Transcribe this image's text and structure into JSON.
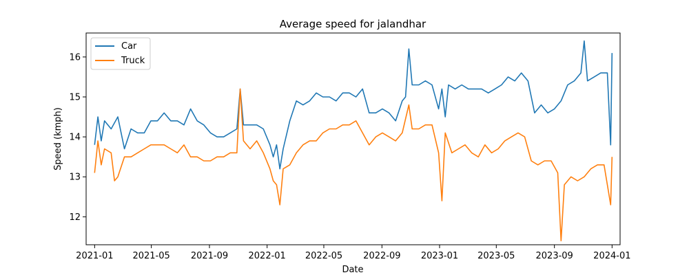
{
  "chart_data": {
    "type": "line",
    "title": "Average speed for jalandhar",
    "xlabel": "Date",
    "ylabel": "Speed (kmph)",
    "xlim": [
      "2020-12-14",
      "2024-01-18"
    ],
    "ylim": [
      11.3,
      16.6
    ],
    "x_ticks": [
      "2021-01",
      "2021-05",
      "2021-09",
      "2022-01",
      "2022-05",
      "2022-09",
      "2023-01",
      "2023-05",
      "2023-09",
      "2024-01"
    ],
    "y_ticks": [
      12,
      13,
      14,
      15,
      16
    ],
    "grid": false,
    "legend_position": "top-left",
    "series": [
      {
        "name": "Car",
        "color": "#1f77b4",
        "points": [
          [
            "2021-01-01",
            13.8
          ],
          [
            "2021-01-08",
            14.5
          ],
          [
            "2021-01-15",
            13.9
          ],
          [
            "2021-01-22",
            14.4
          ],
          [
            "2021-02-05",
            14.2
          ],
          [
            "2021-02-19",
            14.5
          ],
          [
            "2021-03-05",
            13.7
          ],
          [
            "2021-03-19",
            14.2
          ],
          [
            "2021-04-02",
            14.1
          ],
          [
            "2021-04-16",
            14.1
          ],
          [
            "2021-04-30",
            14.4
          ],
          [
            "2021-05-14",
            14.4
          ],
          [
            "2021-05-28",
            14.6
          ],
          [
            "2021-06-11",
            14.4
          ],
          [
            "2021-06-25",
            14.4
          ],
          [
            "2021-07-09",
            14.3
          ],
          [
            "2021-07-23",
            14.7
          ],
          [
            "2021-08-06",
            14.4
          ],
          [
            "2021-08-20",
            14.3
          ],
          [
            "2021-09-03",
            14.1
          ],
          [
            "2021-09-17",
            14.0
          ],
          [
            "2021-10-01",
            14.0
          ],
          [
            "2021-10-15",
            14.1
          ],
          [
            "2021-10-29",
            14.2
          ],
          [
            "2021-11-05",
            15.2
          ],
          [
            "2021-11-12",
            14.3
          ],
          [
            "2021-11-26",
            14.3
          ],
          [
            "2021-12-10",
            14.3
          ],
          [
            "2021-12-24",
            14.2
          ],
          [
            "2022-01-07",
            13.8
          ],
          [
            "2022-01-14",
            13.5
          ],
          [
            "2022-01-21",
            13.8
          ],
          [
            "2022-01-28",
            13.2
          ],
          [
            "2022-02-04",
            13.7
          ],
          [
            "2022-02-18",
            14.4
          ],
          [
            "2022-03-04",
            14.9
          ],
          [
            "2022-03-18",
            14.8
          ],
          [
            "2022-04-01",
            14.9
          ],
          [
            "2022-04-15",
            15.1
          ],
          [
            "2022-04-29",
            15.0
          ],
          [
            "2022-05-13",
            15.0
          ],
          [
            "2022-05-27",
            14.9
          ],
          [
            "2022-06-10",
            15.1
          ],
          [
            "2022-06-24",
            15.1
          ],
          [
            "2022-07-08",
            15.0
          ],
          [
            "2022-07-22",
            15.2
          ],
          [
            "2022-08-05",
            14.6
          ],
          [
            "2022-08-19",
            14.6
          ],
          [
            "2022-09-02",
            14.7
          ],
          [
            "2022-09-16",
            14.6
          ],
          [
            "2022-09-30",
            14.4
          ],
          [
            "2022-10-14",
            14.9
          ],
          [
            "2022-10-21",
            15.0
          ],
          [
            "2022-10-28",
            16.2
          ],
          [
            "2022-11-04",
            15.3
          ],
          [
            "2022-11-18",
            15.3
          ],
          [
            "2022-12-02",
            15.4
          ],
          [
            "2022-12-16",
            15.3
          ],
          [
            "2022-12-30",
            14.7
          ],
          [
            "2023-01-06",
            15.2
          ],
          [
            "2023-01-13",
            14.5
          ],
          [
            "2023-01-20",
            15.3
          ],
          [
            "2023-02-03",
            15.2
          ],
          [
            "2023-02-17",
            15.3
          ],
          [
            "2023-03-03",
            15.2
          ],
          [
            "2023-03-17",
            15.2
          ],
          [
            "2023-03-31",
            15.2
          ],
          [
            "2023-04-14",
            15.1
          ],
          [
            "2023-04-28",
            15.2
          ],
          [
            "2023-05-12",
            15.3
          ],
          [
            "2023-05-26",
            15.5
          ],
          [
            "2023-06-09",
            15.4
          ],
          [
            "2023-06-23",
            15.6
          ],
          [
            "2023-07-07",
            15.4
          ],
          [
            "2023-07-21",
            14.6
          ],
          [
            "2023-08-04",
            14.8
          ],
          [
            "2023-08-18",
            14.6
          ],
          [
            "2023-09-01",
            14.7
          ],
          [
            "2023-09-15",
            14.9
          ],
          [
            "2023-09-29",
            15.3
          ],
          [
            "2023-10-13",
            15.4
          ],
          [
            "2023-10-27",
            15.6
          ],
          [
            "2023-11-03",
            16.4
          ],
          [
            "2023-11-10",
            15.4
          ],
          [
            "2023-11-24",
            15.5
          ],
          [
            "2023-12-08",
            15.6
          ],
          [
            "2023-12-22",
            15.6
          ],
          [
            "2023-12-29",
            13.8
          ],
          [
            "2024-01-01",
            16.1
          ]
        ]
      },
      {
        "name": "Truck",
        "color": "#ff7f0e",
        "points": [
          [
            "2021-01-01",
            13.1
          ],
          [
            "2021-01-08",
            13.9
          ],
          [
            "2021-01-15",
            13.3
          ],
          [
            "2021-01-22",
            13.7
          ],
          [
            "2021-02-05",
            13.6
          ],
          [
            "2021-02-12",
            12.9
          ],
          [
            "2021-02-19",
            13.0
          ],
          [
            "2021-03-05",
            13.5
          ],
          [
            "2021-03-19",
            13.5
          ],
          [
            "2021-04-02",
            13.6
          ],
          [
            "2021-04-16",
            13.7
          ],
          [
            "2021-04-30",
            13.8
          ],
          [
            "2021-05-14",
            13.8
          ],
          [
            "2021-05-28",
            13.8
          ],
          [
            "2021-06-11",
            13.7
          ],
          [
            "2021-06-25",
            13.6
          ],
          [
            "2021-07-09",
            13.8
          ],
          [
            "2021-07-23",
            13.5
          ],
          [
            "2021-08-06",
            13.5
          ],
          [
            "2021-08-20",
            13.4
          ],
          [
            "2021-09-03",
            13.4
          ],
          [
            "2021-09-17",
            13.5
          ],
          [
            "2021-10-01",
            13.5
          ],
          [
            "2021-10-15",
            13.6
          ],
          [
            "2021-10-29",
            13.6
          ],
          [
            "2021-11-05",
            15.2
          ],
          [
            "2021-11-12",
            13.9
          ],
          [
            "2021-11-26",
            13.7
          ],
          [
            "2021-12-10",
            13.9
          ],
          [
            "2021-12-24",
            13.6
          ],
          [
            "2022-01-07",
            13.2
          ],
          [
            "2022-01-14",
            12.9
          ],
          [
            "2022-01-21",
            12.8
          ],
          [
            "2022-01-28",
            12.3
          ],
          [
            "2022-02-04",
            13.2
          ],
          [
            "2022-02-18",
            13.3
          ],
          [
            "2022-03-04",
            13.6
          ],
          [
            "2022-03-18",
            13.8
          ],
          [
            "2022-04-01",
            13.9
          ],
          [
            "2022-04-15",
            13.9
          ],
          [
            "2022-04-29",
            14.1
          ],
          [
            "2022-05-13",
            14.2
          ],
          [
            "2022-05-27",
            14.2
          ],
          [
            "2022-06-10",
            14.3
          ],
          [
            "2022-06-24",
            14.3
          ],
          [
            "2022-07-08",
            14.4
          ],
          [
            "2022-07-22",
            14.1
          ],
          [
            "2022-08-05",
            13.8
          ],
          [
            "2022-08-19",
            14.0
          ],
          [
            "2022-09-02",
            14.1
          ],
          [
            "2022-09-16",
            14.0
          ],
          [
            "2022-09-30",
            13.9
          ],
          [
            "2022-10-14",
            14.1
          ],
          [
            "2022-10-28",
            14.8
          ],
          [
            "2022-11-04",
            14.2
          ],
          [
            "2022-11-18",
            14.2
          ],
          [
            "2022-12-02",
            14.3
          ],
          [
            "2022-12-16",
            14.3
          ],
          [
            "2022-12-30",
            13.6
          ],
          [
            "2023-01-06",
            12.4
          ],
          [
            "2023-01-13",
            14.1
          ],
          [
            "2023-01-27",
            13.6
          ],
          [
            "2023-02-10",
            13.7
          ],
          [
            "2023-02-24",
            13.8
          ],
          [
            "2023-03-10",
            13.6
          ],
          [
            "2023-03-24",
            13.5
          ],
          [
            "2023-04-07",
            13.8
          ],
          [
            "2023-04-21",
            13.6
          ],
          [
            "2023-05-05",
            13.7
          ],
          [
            "2023-05-19",
            13.9
          ],
          [
            "2023-06-02",
            14.0
          ],
          [
            "2023-06-16",
            14.1
          ],
          [
            "2023-06-30",
            14.0
          ],
          [
            "2023-07-14",
            13.4
          ],
          [
            "2023-07-28",
            13.3
          ],
          [
            "2023-08-11",
            13.4
          ],
          [
            "2023-08-25",
            13.4
          ],
          [
            "2023-09-08",
            13.1
          ],
          [
            "2023-09-15",
            11.4
          ],
          [
            "2023-09-22",
            12.8
          ],
          [
            "2023-10-06",
            13.0
          ],
          [
            "2023-10-20",
            12.9
          ],
          [
            "2023-11-03",
            13.0
          ],
          [
            "2023-11-17",
            13.2
          ],
          [
            "2023-12-01",
            13.3
          ],
          [
            "2023-12-15",
            13.3
          ],
          [
            "2023-12-29",
            12.3
          ],
          [
            "2024-01-01",
            13.5
          ]
        ]
      }
    ]
  }
}
